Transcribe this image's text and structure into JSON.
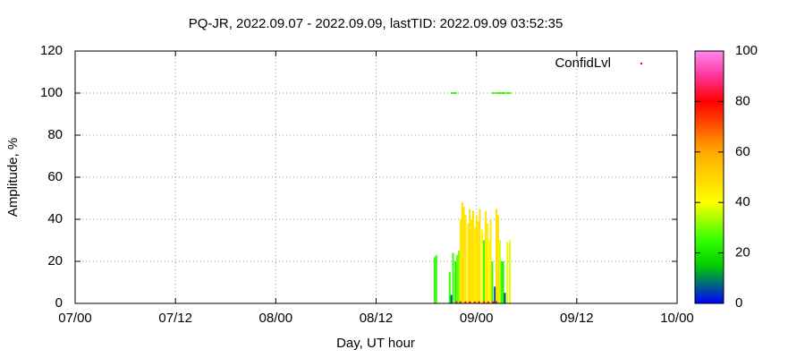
{
  "chart_data": {
    "type": "impulse",
    "title": "PQ-JR, 2022.09.07 - 2022.09.09, lastTID: 2022.09.09 03:52:35",
    "xlabel": "Day, UT hour",
    "ylabel": "Amplitude, %",
    "xlim": [
      0,
      72
    ],
    "xticks": [
      {
        "value": 0,
        "label": "07/00"
      },
      {
        "value": 12,
        "label": "07/12"
      },
      {
        "value": 24,
        "label": "08/00"
      },
      {
        "value": 36,
        "label": "08/12"
      },
      {
        "value": 48,
        "label": "09/00"
      },
      {
        "value": 60,
        "label": "09/12"
      },
      {
        "value": 72,
        "label": "10/00"
      }
    ],
    "ylim": [
      0,
      120
    ],
    "yticks": [
      0,
      20,
      40,
      60,
      80,
      100,
      120
    ],
    "grid": true,
    "clim": [
      0,
      100
    ],
    "cticks": [
      0,
      20,
      40,
      60,
      80,
      100
    ],
    "palette": [
      {
        "value": 0,
        "color": "#0000ff"
      },
      {
        "value": 15,
        "color": "#00cc00"
      },
      {
        "value": 25,
        "color": "#33ff00"
      },
      {
        "value": 40,
        "color": "#ffff00"
      },
      {
        "value": 60,
        "color": "#ffaa00"
      },
      {
        "value": 80,
        "color": "#ff0000"
      },
      {
        "value": 90,
        "color": "#ff3399"
      },
      {
        "value": 100,
        "color": "#ff88ee"
      }
    ],
    "legend": "top-right",
    "series": [
      {
        "name": "ConfidLvl",
        "style": "impulses",
        "x": [
          43.0,
          43.2,
          44.8,
          45.0,
          45.2,
          45.5,
          45.7,
          45.9,
          46.1,
          46.3,
          46.5,
          46.7,
          47.0,
          47.2,
          47.4,
          47.6,
          47.8,
          48.0,
          48.2,
          48.4,
          48.7,
          48.9,
          49.1,
          49.3,
          49.5,
          49.7,
          49.9,
          50.2,
          50.4,
          50.6,
          50.8,
          51.0,
          51.2,
          51.4,
          51.7,
          52.0
        ],
        "values": [
          22,
          23,
          15,
          4,
          24,
          20,
          23,
          25,
          40,
          48,
          46,
          42,
          38,
          45,
          40,
          44,
          36,
          42,
          39,
          45,
          35,
          30,
          44,
          38,
          30,
          40,
          20,
          8,
          45,
          42,
          30,
          20,
          20,
          5,
          29,
          30
        ],
        "confid": [
          25,
          25,
          25,
          5,
          25,
          22,
          28,
          30,
          45,
          48,
          46,
          46,
          45,
          47,
          46,
          47,
          44,
          46,
          46,
          47,
          42,
          25,
          46,
          45,
          40,
          44,
          25,
          5,
          48,
          46,
          36,
          25,
          22,
          5,
          38,
          38
        ]
      },
      {
        "style": "points",
        "x": [
          45.1,
          45.3,
          45.5,
          50.0,
          50.4,
          50.7,
          51.0,
          51.3,
          51.7,
          52.0
        ],
        "values": [
          100,
          100,
          100,
          100,
          100,
          100,
          100,
          100,
          100,
          100
        ],
        "confid": [
          25,
          25,
          25,
          25,
          25,
          25,
          25,
          25,
          25,
          25
        ]
      },
      {
        "style": "impulses",
        "x": [
          45.6,
          46.1,
          46.7,
          47.2,
          47.8,
          48.3,
          48.9,
          49.4,
          50.0,
          50.4
        ],
        "values": [
          1,
          1,
          1,
          1,
          1,
          1,
          1,
          1,
          1,
          1
        ],
        "confid": [
          82,
          82,
          82,
          82,
          82,
          82,
          82,
          82,
          82,
          82
        ]
      }
    ]
  }
}
